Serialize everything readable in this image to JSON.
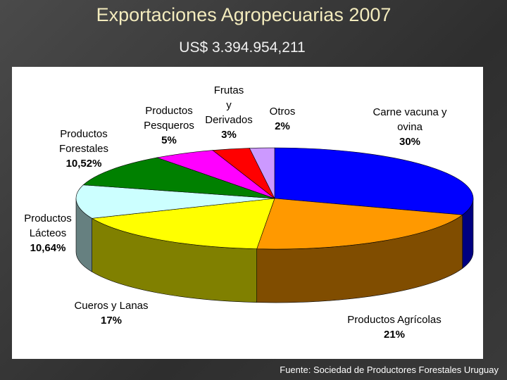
{
  "chart_data": {
    "type": "pie3d",
    "title": "Exportaciones Agropecuarias 2007",
    "subtitle": "US$ 3.394.954,211",
    "categories": [
      "Carne vacuna y\novina",
      "Productos Agrícolas",
      "Cueros y Lanas",
      "Productos\nLácteos",
      "Productos\nForestales",
      "Productos\nPesqueros",
      "Frutas\ny\nDerivados",
      "Otros"
    ],
    "values": [
      30,
      21,
      17,
      10.64,
      10.52,
      5,
      3,
      2
    ],
    "value_labels": [
      "30%",
      "21%",
      "17%",
      "10,64%",
      "10,52%",
      "5%",
      "3%",
      "2%"
    ],
    "colors": [
      "#0000ff",
      "#ff9900",
      "#ffff00",
      "#ccffff",
      "#008000",
      "#ff00ff",
      "#ff0000",
      "#cc99ff"
    ],
    "source": "Fuente: Sociedad de Productores Forestales Uruguay"
  }
}
